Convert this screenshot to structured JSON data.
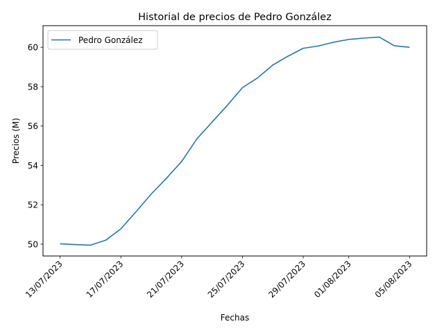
{
  "chart_data": {
    "type": "line",
    "title": "Historial de precios de Pedro González",
    "xlabel": "Fechas",
    "ylabel": "Precios (M)",
    "x": [
      "2023-07-13",
      "2023-07-14",
      "2023-07-15",
      "2023-07-16",
      "2023-07-17",
      "2023-07-18",
      "2023-07-19",
      "2023-07-20",
      "2023-07-21",
      "2023-07-22",
      "2023-07-23",
      "2023-07-24",
      "2023-07-25",
      "2023-07-26",
      "2023-07-27",
      "2023-07-28",
      "2023-07-29",
      "2023-07-30",
      "2023-07-31",
      "2023-08-01",
      "2023-08-02",
      "2023-08-03",
      "2023-08-04",
      "2023-08-05"
    ],
    "series": [
      {
        "name": "Pedro González",
        "color": "#1f77b4",
        "values": [
          50.02,
          49.98,
          49.95,
          50.2,
          50.78,
          51.65,
          52.55,
          53.35,
          54.2,
          55.35,
          56.2,
          57.05,
          57.95,
          58.45,
          59.1,
          59.55,
          59.95,
          60.07,
          60.26,
          60.4,
          60.47,
          60.52,
          60.08,
          60.0
        ]
      }
    ],
    "xticks": [
      "13/07/2023",
      "17/07/2023",
      "21/07/2023",
      "25/07/2023",
      "29/07/2023",
      "01/08/2023",
      "05/08/2023"
    ],
    "yticks": [
      50,
      52,
      54,
      56,
      58,
      60
    ],
    "xlim": [
      "2023-07-11T21:00",
      "2023-08-06T03:00"
    ],
    "ylim": [
      49.4,
      61.1
    ],
    "grid": false,
    "legend": "top-left"
  }
}
